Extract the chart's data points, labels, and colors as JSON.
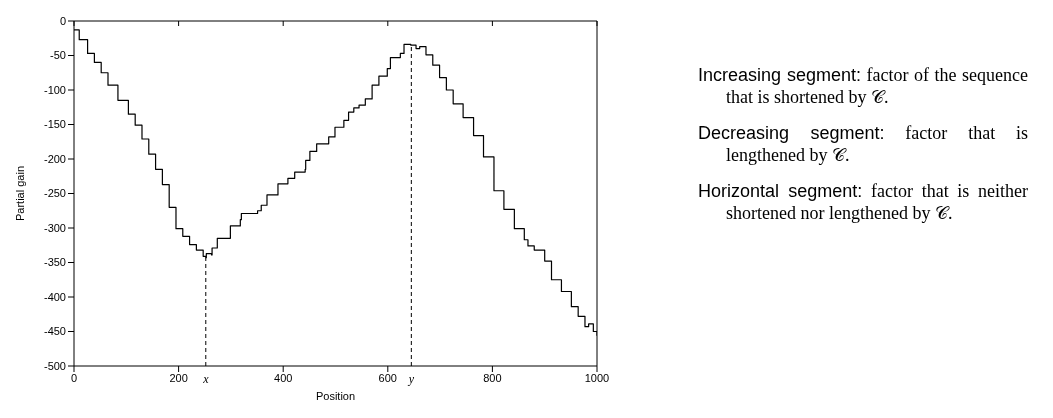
{
  "chart_data": {
    "type": "step",
    "xlabel": "Position",
    "ylabel": "Partial gain",
    "x": [
      0,
      10,
      26,
      39,
      52,
      65,
      84,
      104,
      117,
      130,
      143,
      156,
      169,
      182,
      195,
      208,
      221,
      234,
      247,
      252,
      253,
      263,
      264,
      274,
      299,
      318,
      320,
      351,
      358,
      369,
      390,
      409,
      422,
      442,
      443,
      451,
      464,
      487,
      499,
      516,
      525,
      535,
      545,
      557,
      570,
      583,
      599,
      605,
      624,
      631,
      644,
      654,
      661,
      673,
      686,
      699,
      712,
      725,
      744,
      764,
      783,
      803,
      822,
      842,
      861,
      868,
      880,
      900,
      913,
      932,
      951,
      964,
      977,
      984,
      993,
      1000
    ],
    "values": [
      -13,
      -27,
      -47,
      -60,
      -75,
      -93,
      -115,
      -135,
      -151,
      -171,
      -193,
      -215,
      -237,
      -270,
      -301,
      -312,
      -324,
      -332,
      -341,
      -343,
      -337,
      -339,
      -329,
      -315,
      -297,
      -288,
      -279,
      -275,
      -267,
      -252,
      -236,
      -228,
      -219,
      -215,
      -202,
      -189,
      -178,
      -168,
      -154,
      -144,
      -132,
      -126,
      -122,
      -113,
      -93,
      -80,
      -69,
      -53,
      -47,
      -34,
      -35,
      -40,
      -37,
      -49,
      -64,
      -82,
      -100,
      -120,
      -140,
      -166,
      -197,
      -246,
      -273,
      -301,
      -317,
      -326,
      -332,
      -348,
      -375,
      -392,
      -414,
      -428,
      -443,
      -439,
      -450,
      -456
    ],
    "color": "#000000",
    "xlim": [
      0,
      1000
    ],
    "xticks": [
      0,
      200,
      400,
      600,
      800,
      1000
    ],
    "ylim": [
      -500,
      0
    ],
    "yticks": [
      -500,
      -450,
      -400,
      -350,
      -300,
      -250,
      -200,
      -150,
      -100,
      -50,
      0
    ],
    "grid": false,
    "legend": false,
    "marker": "none",
    "line_style": "solid",
    "ref_lines": [
      {
        "axis": "x",
        "value": 252,
        "label": "x",
        "line_style": "dashed",
        "color": "#000000"
      },
      {
        "axis": "x",
        "value": 645,
        "label": "y",
        "line_style": "dashed",
        "color": "#000000"
      }
    ],
    "annotations": [
      "Increasing segment: factor of the sequence that is shortened by 𝒞.",
      "Decreasing segment: factor that is lengthened by 𝒞.",
      "Horizontal segment: factor that is neither shortened nor lengthened by 𝒞."
    ]
  }
}
